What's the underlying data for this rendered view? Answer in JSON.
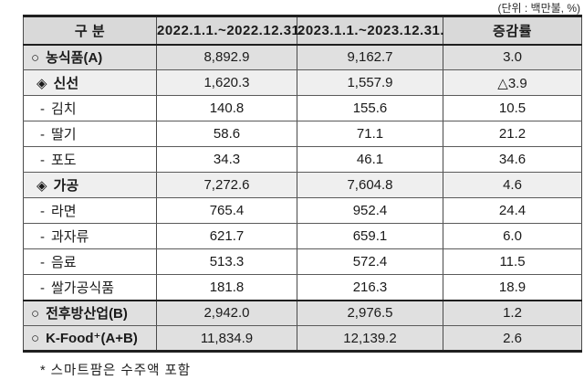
{
  "unit_note": "(단위 : 백만불, %)",
  "footnote": "* 스마트팜은 수주액 포함",
  "table": {
    "columns": [
      "구 분",
      "2022.1.1.~2022.12.31.",
      "2023.1.1.~2023.12.31.",
      "증감률"
    ],
    "rows": [
      {
        "bullet": "○",
        "label": "농식품(A)",
        "level": "a",
        "v2022": "8,892.9",
        "v2023": "9,162.7",
        "rate": "3.0"
      },
      {
        "bullet": "◈",
        "label": "신선",
        "level": "b",
        "v2022": "1,620.3",
        "v2023": "1,557.9",
        "rate": "△3.9"
      },
      {
        "bullet": "-",
        "label": "김치",
        "level": "c",
        "v2022": "140.8",
        "v2023": "155.6",
        "rate": "10.5"
      },
      {
        "bullet": "-",
        "label": "딸기",
        "level": "c",
        "v2022": "58.6",
        "v2023": "71.1",
        "rate": "21.2"
      },
      {
        "bullet": "-",
        "label": "포도",
        "level": "c",
        "v2022": "34.3",
        "v2023": "46.1",
        "rate": "34.6"
      },
      {
        "bullet": "◈",
        "label": "가공",
        "level": "b",
        "v2022": "7,272.6",
        "v2023": "7,604.8",
        "rate": "4.6"
      },
      {
        "bullet": "-",
        "label": "라면",
        "level": "c",
        "v2022": "765.4",
        "v2023": "952.4",
        "rate": "24.4"
      },
      {
        "bullet": "-",
        "label": "과자류",
        "level": "c",
        "v2022": "621.7",
        "v2023": "659.1",
        "rate": "6.0"
      },
      {
        "bullet": "-",
        "label": "음료",
        "level": "c",
        "v2022": "513.3",
        "v2023": "572.4",
        "rate": "11.5"
      },
      {
        "bullet": "-",
        "label": "쌀가공식품",
        "level": "c",
        "v2022": "181.8",
        "v2023": "216.3",
        "rate": "18.9"
      },
      {
        "bullet": "○",
        "label": "전후방산업(B)",
        "level": "a",
        "v2022": "2,942.0",
        "v2023": "2,976.5",
        "rate": "1.2"
      },
      {
        "bullet": "○",
        "label": "K-Food⁺(A+B)",
        "level": "a",
        "v2022": "11,834.9",
        "v2023": "12,139.2",
        "rate": "2.6"
      }
    ]
  },
  "colors": {
    "header_bg": "#d9d9d9",
    "level_a_bg": "#e0e0e0",
    "level_b_bg": "#efefef",
    "border_thick": "#1f1f1f",
    "border_thin": "#5a5a5a",
    "text": "#1a1a1a"
  }
}
